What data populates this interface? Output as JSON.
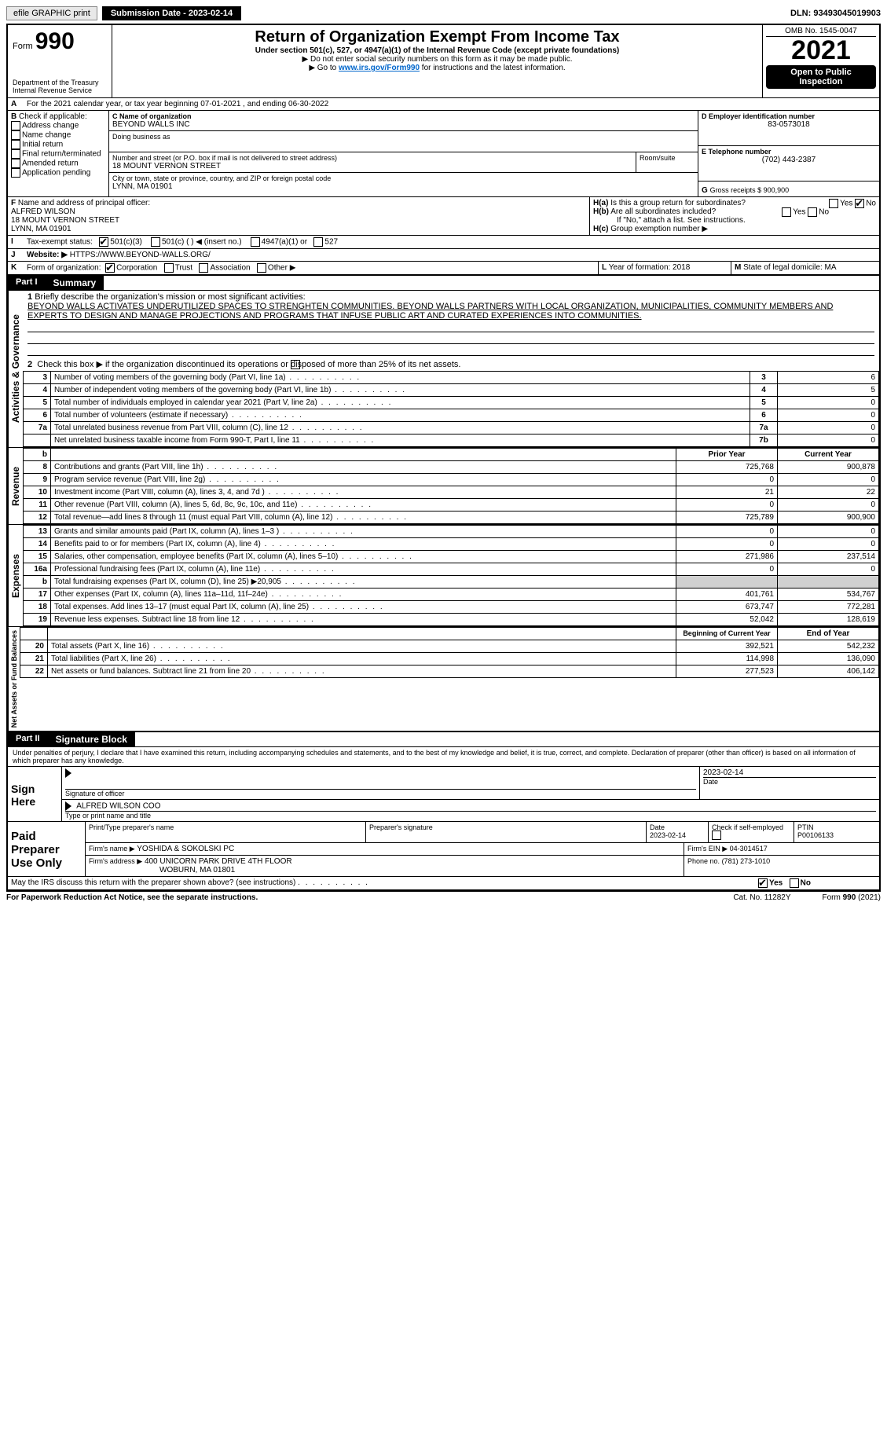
{
  "topbar": {
    "efile": "efile GRAPHIC print",
    "submission_label": "Submission Date - 2023-02-14",
    "dln": "DLN: 93493045019903"
  },
  "header": {
    "form_word": "Form",
    "form_no": "990",
    "title": "Return of Organization Exempt From Income Tax",
    "subtitle": "Under section 501(c), 527, or 4947(a)(1) of the Internal Revenue Code (except private foundations)",
    "note1": "▶ Do not enter social security numbers on this form as it may be made public.",
    "note2_pre": "▶ Go to ",
    "note2_link": "www.irs.gov/Form990",
    "note2_post": " for instructions and the latest information.",
    "omb": "OMB No. 1545-0047",
    "year": "2021",
    "inspect1": "Open to Public",
    "inspect2": "Inspection",
    "dept1": "Department of the Treasury",
    "dept2": "Internal Revenue Service"
  },
  "period": {
    "label_a": "A",
    "text": "For the 2021 calendar year, or tax year beginning 07-01-2021     , and ending 06-30-2022"
  },
  "boxB": {
    "label": "B",
    "intro": "Check if applicable:",
    "items": [
      "Address change",
      "Name change",
      "Initial return",
      "Final return/terminated",
      "Amended return",
      "Application pending"
    ]
  },
  "boxC": {
    "label": "C Name of organization",
    "name": "BEYOND WALLS INC",
    "dba_label": "Doing business as",
    "addr_label": "Number and street (or P.O. box if mail is not delivered to street address)",
    "room_label": "Room/suite",
    "addr": "18 MOUNT VERNON STREET",
    "city_label": "City or town, state or province, country, and ZIP or foreign postal code",
    "city": "LYNN, MA  01901"
  },
  "boxD": {
    "label": "D Employer identification number",
    "ein": "83-0573018"
  },
  "boxE": {
    "label": "E Telephone number",
    "phone": "(702) 443-2387"
  },
  "boxG": {
    "label": "G",
    "text": "Gross receipts $ 900,900"
  },
  "boxF": {
    "label": "F",
    "text": "Name and address of principal officer:",
    "name": "ALFRED WILSON",
    "addr": "18 MOUNT VERNON STREET",
    "city": "LYNN, MA  01901"
  },
  "boxH": {
    "a_label": "H(a)",
    "a_text": "Is this a group return for subordinates?",
    "b_label": "H(b)",
    "b_text": "Are all subordinates included?",
    "b_note": "If \"No,\" attach a list. See instructions.",
    "c_label": "H(c)",
    "c_text": "Group exemption number ▶",
    "yes": "Yes",
    "no": "No"
  },
  "boxI": {
    "label": "I",
    "text": "Tax-exempt status:",
    "opts": [
      "501(c)(3)",
      "501(c) (   ) ◀ (insert no.)",
      "4947(a)(1) or",
      "527"
    ]
  },
  "boxJ": {
    "label": "J",
    "text": "Website: ▶",
    "url": "HTTPS://WWW.BEYOND-WALLS.ORG/"
  },
  "boxK": {
    "label": "K",
    "text": "Form of organization:",
    "opts": [
      "Corporation",
      "Trust",
      "Association",
      "Other ▶"
    ]
  },
  "boxL": {
    "label": "L",
    "text": "Year of formation: 2018"
  },
  "boxM": {
    "label": "M",
    "text": "State of legal domicile: MA"
  },
  "part1": {
    "label": "Part I",
    "title": "Summary"
  },
  "summary": {
    "side_gov": "Activities & Governance",
    "side_rev": "Revenue",
    "side_exp": "Expenses",
    "side_net": "Net Assets or Fund Balances",
    "l1_label": "1",
    "l1_text": "Briefly describe the organization's mission or most significant activities:",
    "l1_body": "BEYOND WALLS ACTIVATES UNDERUTILIZED SPACES TO STRENGHTEN COMMUNITIES. BEYOND WALLS PARTNERS WITH LOCAL ORGANIZATION, MUNICIPALITIES, COMMUNITY MEMBERS AND EXPERTS TO DESIGN AND MANAGE PROJECTIONS AND PROGRAMS THAT INFUSE PUBLIC ART AND CURATED EXPERIENCES INTO COMMUNITIES.",
    "l2": "Check this box ▶       if the organization discontinued its operations or disposed of more than 25% of its net assets.",
    "rows_gov": [
      {
        "n": "3",
        "t": "Number of voting members of the governing body (Part VI, line 1a)",
        "box": "3",
        "v": "6"
      },
      {
        "n": "4",
        "t": "Number of independent voting members of the governing body (Part VI, line 1b)",
        "box": "4",
        "v": "5"
      },
      {
        "n": "5",
        "t": "Total number of individuals employed in calendar year 2021 (Part V, line 2a)",
        "box": "5",
        "v": "0"
      },
      {
        "n": "6",
        "t": "Total number of volunteers (estimate if necessary)",
        "box": "6",
        "v": "0"
      },
      {
        "n": "7a",
        "t": "Total unrelated business revenue from Part VIII, column (C), line 12",
        "box": "7a",
        "v": "0"
      },
      {
        "n": "",
        "t": "Net unrelated business taxable income from Form 990-T, Part I, line 11",
        "box": "7b",
        "v": "0"
      }
    ],
    "hdr_b": "b",
    "col_prior": "Prior Year",
    "col_current": "Current Year",
    "rows_rev": [
      {
        "n": "8",
        "t": "Contributions and grants (Part VIII, line 1h)",
        "p": "725,768",
        "c": "900,878"
      },
      {
        "n": "9",
        "t": "Program service revenue (Part VIII, line 2g)",
        "p": "0",
        "c": "0"
      },
      {
        "n": "10",
        "t": "Investment income (Part VIII, column (A), lines 3, 4, and 7d )",
        "p": "21",
        "c": "22"
      },
      {
        "n": "11",
        "t": "Other revenue (Part VIII, column (A), lines 5, 6d, 8c, 9c, 10c, and 11e)",
        "p": "0",
        "c": "0"
      },
      {
        "n": "12",
        "t": "Total revenue—add lines 8 through 11 (must equal Part VIII, column (A), line 12)",
        "p": "725,789",
        "c": "900,900"
      }
    ],
    "rows_exp": [
      {
        "n": "13",
        "t": "Grants and similar amounts paid (Part IX, column (A), lines 1–3 )",
        "p": "0",
        "c": "0"
      },
      {
        "n": "14",
        "t": "Benefits paid to or for members (Part IX, column (A), line 4)",
        "p": "0",
        "c": "0"
      },
      {
        "n": "15",
        "t": "Salaries, other compensation, employee benefits (Part IX, column (A), lines 5–10)",
        "p": "271,986",
        "c": "237,514"
      },
      {
        "n": "16a",
        "t": "Professional fundraising fees (Part IX, column (A), line 11e)",
        "p": "0",
        "c": "0"
      },
      {
        "n": "b",
        "t": "Total fundraising expenses (Part IX, column (D), line 25) ▶20,905",
        "p": "",
        "c": "",
        "shade": true
      },
      {
        "n": "17",
        "t": "Other expenses (Part IX, column (A), lines 11a–11d, 11f–24e)",
        "p": "401,761",
        "c": "534,767"
      },
      {
        "n": "18",
        "t": "Total expenses. Add lines 13–17 (must equal Part IX, column (A), line 25)",
        "p": "673,747",
        "c": "772,281"
      },
      {
        "n": "19",
        "t": "Revenue less expenses. Subtract line 18 from line 12",
        "p": "52,042",
        "c": "128,619"
      }
    ],
    "col_begin": "Beginning of Current Year",
    "col_end": "End of Year",
    "rows_net": [
      {
        "n": "20",
        "t": "Total assets (Part X, line 16)",
        "p": "392,521",
        "c": "542,232"
      },
      {
        "n": "21",
        "t": "Total liabilities (Part X, line 26)",
        "p": "114,998",
        "c": "136,090"
      },
      {
        "n": "22",
        "t": "Net assets or fund balances. Subtract line 21 from line 20",
        "p": "277,523",
        "c": "406,142"
      }
    ]
  },
  "part2": {
    "label": "Part II",
    "title": "Signature Block"
  },
  "sig": {
    "penalty": "Under penalties of perjury, I declare that I have examined this return, including accompanying schedules and statements, and to the best of my knowledge and belief, it is true, correct, and complete. Declaration of preparer (other than officer) is based on all information of which preparer has any knowledge.",
    "sign_here": "Sign Here",
    "sig_officer_label": "Signature of officer",
    "date_label": "Date",
    "date_val": "2023-02-14",
    "officer_name": "ALFRED WILSON  COO",
    "type_label": "Type or print name and title",
    "paid": "Paid Preparer Use Only",
    "prep_name_label": "Print/Type preparer's name",
    "prep_sig_label": "Preparer's signature",
    "prep_date_label": "Date",
    "prep_date": "2023-02-14",
    "self_emp": "Check        if self-employed",
    "ptin_label": "PTIN",
    "ptin": "P00106133",
    "firm_name_label": "Firm's name    ▶",
    "firm_name": "YOSHIDA & SOKOLSKI PC",
    "firm_ein_label": "Firm's EIN ▶",
    "firm_ein": "04-3014517",
    "firm_addr_label": "Firm's address ▶",
    "firm_addr1": "400 UNICORN PARK DRIVE 4TH FLOOR",
    "firm_addr2": "WOBURN, MA  01801",
    "phone_label": "Phone no.",
    "phone": "(781) 273-1010",
    "discuss": "May the IRS discuss this return with the preparer shown above? (see instructions)",
    "yes": "Yes",
    "no": "No"
  },
  "footer": {
    "pra": "For Paperwork Reduction Act Notice, see the separate instructions.",
    "cat": "Cat. No. 11282Y",
    "form": "Form 990 (2021)"
  },
  "colors": {
    "link": "#0066cc"
  }
}
